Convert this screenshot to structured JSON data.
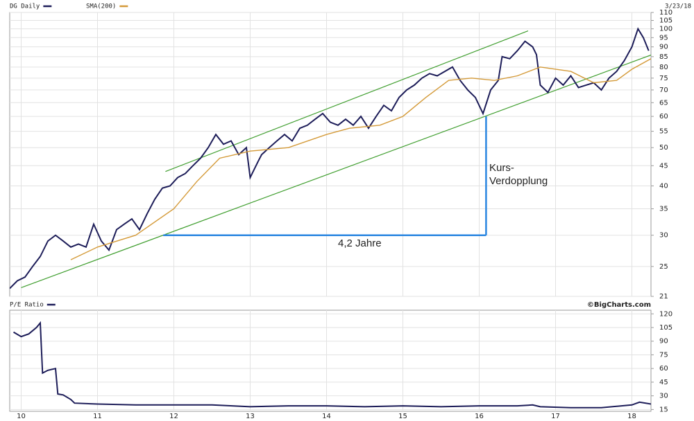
{
  "chart_data": [
    {
      "type": "line",
      "log_scale": true,
      "grid": true,
      "date": "3/23/18",
      "xlim": [
        9.85,
        18.25
      ],
      "xticks": [
        10,
        11,
        12,
        13,
        14,
        15,
        16,
        17,
        18
      ],
      "ylim": [
        21,
        110
      ],
      "yticks": [
        21,
        25,
        30,
        35,
        40,
        45,
        50,
        55,
        60,
        65,
        70,
        75,
        80,
        85,
        90,
        95,
        100,
        105,
        110
      ],
      "series": [
        {
          "name": "DG Daily",
          "color": "#1c1c58",
          "x": [
            9.85,
            9.95,
            10.05,
            10.15,
            10.25,
            10.35,
            10.45,
            10.55,
            10.65,
            10.75,
            10.85,
            10.95,
            11.05,
            11.15,
            11.25,
            11.35,
            11.45,
            11.55,
            11.65,
            11.75,
            11.85,
            11.95,
            12.05,
            12.15,
            12.25,
            12.35,
            12.45,
            12.55,
            12.65,
            12.75,
            12.85,
            12.95,
            13.0,
            13.1,
            13.15,
            13.25,
            13.35,
            13.45,
            13.55,
            13.65,
            13.75,
            13.85,
            13.95,
            14.05,
            14.15,
            14.25,
            14.35,
            14.45,
            14.55,
            14.65,
            14.75,
            14.85,
            14.95,
            15.05,
            15.15,
            15.25,
            15.35,
            15.45,
            15.55,
            15.65,
            15.75,
            15.85,
            15.95,
            16.05,
            16.15,
            16.25,
            16.3,
            16.4,
            16.5,
            16.6,
            16.7,
            16.75,
            16.8,
            16.9,
            17.0,
            17.1,
            17.2,
            17.3,
            17.4,
            17.5,
            17.6,
            17.7,
            17.8,
            17.9,
            18.0,
            18.08,
            18.15,
            18.22
          ],
          "values": [
            22,
            23,
            23.5,
            25,
            26.5,
            29,
            30,
            29,
            28,
            28.5,
            28,
            32,
            29,
            27.5,
            31,
            32,
            33,
            31,
            34,
            37,
            39.5,
            40,
            42,
            43,
            45,
            47,
            50,
            54,
            51,
            52,
            48,
            50,
            42,
            46,
            48,
            50,
            52,
            54,
            52,
            56,
            57,
            59,
            61,
            58,
            57,
            59,
            57,
            60,
            56,
            60,
            64,
            62,
            67,
            70,
            72,
            75,
            77,
            76,
            78,
            80,
            74,
            70,
            67,
            61,
            70,
            74,
            85,
            84,
            88,
            93,
            90,
            86,
            72,
            69,
            75,
            72,
            76,
            71,
            72,
            73,
            70,
            75,
            78,
            83,
            90,
            100,
            95,
            88
          ]
        },
        {
          "name": "SMA(200)",
          "color": "#d49a38",
          "x": [
            10.65,
            11.0,
            11.5,
            12.0,
            12.3,
            12.6,
            13.0,
            13.5,
            14.0,
            14.3,
            14.7,
            15.0,
            15.3,
            15.6,
            15.9,
            16.2,
            16.5,
            16.8,
            17.2,
            17.5,
            17.8,
            18.0,
            18.25
          ],
          "values": [
            26,
            28,
            30,
            35,
            41,
            47,
            49,
            50,
            54,
            56,
            57,
            60,
            67,
            74,
            75,
            74,
            76,
            80,
            78,
            73,
            74,
            79,
            84
          ]
        }
      ],
      "lines": [
        {
          "color": "#3f9e2e",
          "x": [
            10.0,
            18.25
          ],
          "values": [
            22.1,
            85.8
          ]
        },
        {
          "color": "#3f9e2e",
          "x": [
            11.89,
            16.64
          ],
          "values": [
            43.5,
            98.8
          ]
        },
        {
          "color": "#2a86e0",
          "x": [
            11.86,
            16.09
          ],
          "values": [
            30,
            30
          ]
        },
        {
          "color": "#2a86e0",
          "x": [
            16.09,
            16.09
          ],
          "values": [
            30,
            60
          ]
        }
      ],
      "annotations": [
        {
          "text": "Kurs-",
          "color": "#2a86e0"
        },
        {
          "text": "Verdopplung",
          "color": "#2a86e0"
        },
        {
          "text": "4,2 Jahre",
          "color": "#2a86e0"
        }
      ]
    },
    {
      "type": "line",
      "grid": true,
      "source": "©BigCharts.com",
      "xlim": [
        9.85,
        18.25
      ],
      "xticks": [
        10,
        11,
        12,
        13,
        14,
        15,
        16,
        17,
        18
      ],
      "ylim": [
        13,
        124
      ],
      "yticks": [
        15,
        30,
        45,
        60,
        75,
        90,
        105,
        120
      ],
      "series": [
        {
          "name": "P/E Ratio",
          "color": "#1c1c58",
          "x": [
            9.9,
            10.0,
            10.1,
            10.2,
            10.25,
            10.28,
            10.35,
            10.45,
            10.48,
            10.55,
            10.65,
            10.7,
            11.0,
            11.5,
            12.0,
            12.5,
            13.0,
            13.5,
            14.0,
            14.5,
            15.0,
            15.5,
            16.0,
            16.5,
            16.7,
            16.8,
            17.2,
            17.6,
            18.0,
            18.1,
            18.25
          ],
          "values": [
            100,
            95,
            98,
            105,
            110,
            55,
            58,
            60,
            32,
            31,
            26,
            22,
            21,
            20,
            20,
            20,
            18,
            19,
            19,
            18,
            19,
            18,
            19,
            19,
            20,
            18,
            17,
            17,
            20,
            23,
            21
          ]
        }
      ]
    }
  ]
}
